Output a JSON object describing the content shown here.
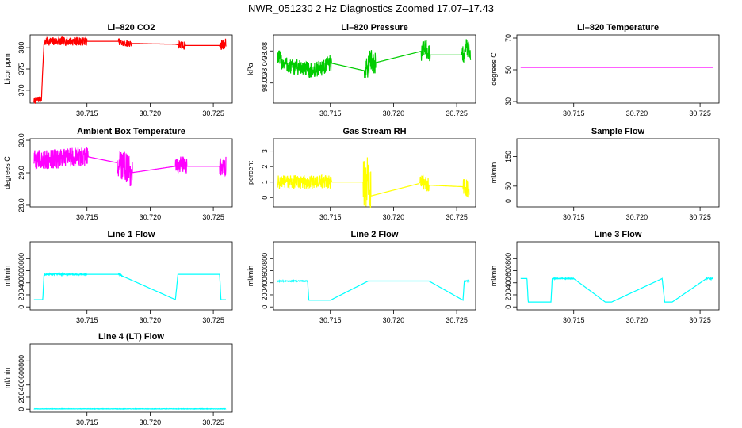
{
  "figure_title": "NWR_051230  2 Hz Diagnostics Zoomed 17.07–17.43",
  "chart_data": [
    {
      "type": "line",
      "title": "Li–820 CO2",
      "ylabel": "Licor ppm",
      "color": "#ff0000",
      "xlim": [
        30.7105,
        30.7265
      ],
      "ylim": [
        367,
        383
      ],
      "xticks": [
        "30.715",
        "30.720",
        "30.725"
      ],
      "yticks": [
        "370",
        "375",
        "380"
      ],
      "series": [
        {
          "name": "CO2",
          "x": [
            30.7108,
            30.7114,
            30.7115,
            30.7116,
            30.7118,
            30.715,
            30.7175,
            30.7178,
            30.7185,
            30.722,
            30.7225,
            30.725,
            30.7255,
            30.726
          ],
          "y": [
            367.5,
            368,
            375,
            381,
            381.5,
            381.5,
            381.5,
            381,
            381,
            380.8,
            380.5,
            380.5,
            380.5,
            381
          ]
        }
      ],
      "noise": [
        {
          "x0": 30.7108,
          "x1": 30.7114,
          "amp": 0.7
        },
        {
          "x0": 30.7116,
          "x1": 30.715,
          "amp": 1.0
        },
        {
          "x0": 30.7175,
          "x1": 30.7185,
          "amp": 0.8
        },
        {
          "x0": 30.7222,
          "x1": 30.7228,
          "amp": 1.0
        },
        {
          "x0": 30.7255,
          "x1": 30.726,
          "amp": 1.2
        }
      ]
    },
    {
      "type": "line",
      "title": "Li–820 Pressure",
      "ylabel": "kPa",
      "color": "#00cc00",
      "xlim": [
        30.7105,
        30.7265
      ],
      "ylim": [
        97.95,
        98.12
      ],
      "xticks": [
        "30.715",
        "30.720",
        "30.725"
      ],
      "yticks": [
        "98.00",
        "98.04",
        "98.08"
      ],
      "series": [
        {
          "name": "Pressure",
          "x": [
            30.7108,
            30.711,
            30.7112,
            30.7115,
            30.7117,
            30.7125,
            30.7135,
            30.7145,
            30.715,
            30.7178,
            30.7182,
            30.7185,
            30.7223,
            30.7225,
            30.7228,
            30.7255,
            30.7258,
            30.7261
          ],
          "y": [
            98.07,
            98.06,
            98.05,
            98.05,
            98.04,
            98.04,
            98.03,
            98.04,
            98.05,
            98.03,
            98.06,
            98.05,
            98.08,
            98.09,
            98.07,
            98.07,
            98.09,
            98.08
          ]
        }
      ],
      "noise": [
        {
          "x0": 30.7108,
          "x1": 30.7151,
          "amp": 0.02
        },
        {
          "x0": 30.7177,
          "x1": 30.7186,
          "amp": 0.028
        },
        {
          "x0": 30.7222,
          "x1": 30.7229,
          "amp": 0.025
        },
        {
          "x0": 30.7254,
          "x1": 30.7261,
          "amp": 0.025
        }
      ]
    },
    {
      "type": "line",
      "title": "Li–820 Temperature",
      "ylabel": "degrees C",
      "color": "#ff00ff",
      "xlim": [
        30.7105,
        30.7265
      ],
      "ylim": [
        29,
        72
      ],
      "xticks": [
        "30.715",
        "30.720",
        "30.725"
      ],
      "yticks": [
        "30",
        "50",
        "70"
      ],
      "series": [
        {
          "name": "Temperature",
          "x": [
            30.7108,
            30.726
          ],
          "y": [
            51.5,
            51.5
          ]
        }
      ],
      "noise": []
    },
    {
      "type": "line",
      "title": "Ambient Box Temperature",
      "ylabel": "degrees C",
      "color": "#ff00ff",
      "xlim": [
        30.7105,
        30.7265
      ],
      "ylim": [
        27.95,
        30.05
      ],
      "xticks": [],
      "yticks": [
        "28.0",
        "29.0",
        "30.0"
      ],
      "series": [
        {
          "name": "Box Temperature",
          "x": [
            30.7108,
            30.7115,
            30.715,
            30.7175,
            30.718,
            30.7185,
            30.722,
            30.7225,
            30.7228,
            30.7255,
            30.726
          ],
          "y": [
            29.4,
            29.4,
            29.5,
            29.3,
            29.2,
            29.0,
            29.2,
            29.3,
            29.2,
            29.2,
            29.2
          ]
        }
      ],
      "noise": [
        {
          "x0": 30.7108,
          "x1": 30.7151,
          "amp": 0.3
        },
        {
          "x0": 30.7174,
          "x1": 30.7186,
          "amp": 0.45
        },
        {
          "x0": 30.722,
          "x1": 30.7229,
          "amp": 0.25
        },
        {
          "x0": 30.7255,
          "x1": 30.726,
          "amp": 0.3
        }
      ]
    },
    {
      "type": "line",
      "title": "Gas Stream RH",
      "ylabel": "percent",
      "color": "#ffff00",
      "xlim": [
        30.7105,
        30.7265
      ],
      "ylim": [
        -0.6,
        3.8
      ],
      "xticks": [],
      "yticks": [
        "0",
        "1",
        "2",
        "3"
      ],
      "series": [
        {
          "name": "RH",
          "x": [
            30.7108,
            30.715,
            30.7175,
            30.718,
            30.7182,
            30.722,
            30.7222,
            30.7228,
            30.7255,
            30.726
          ],
          "y": [
            1.0,
            1.0,
            1.0,
            1.0,
            0.1,
            0.9,
            1.1,
            0.8,
            0.7,
            0.5
          ]
        }
      ],
      "noise": [
        {
          "x0": 30.7108,
          "x1": 30.7151,
          "amp": 0.45
        },
        {
          "x0": 30.7176,
          "x1": 30.7182,
          "amp": 1.6
        },
        {
          "x0": 30.7221,
          "x1": 30.7228,
          "amp": 0.5
        },
        {
          "x0": 30.7255,
          "x1": 30.726,
          "amp": 0.6
        }
      ]
    },
    {
      "type": "line",
      "title": "Sample Flow",
      "ylabel": "ml/min",
      "color": "#00ffff",
      "xlim": [
        30.7105,
        30.7265
      ],
      "ylim": [
        -20,
        210
      ],
      "xticks": [],
      "yticks": [
        "0",
        "50",
        "150"
      ],
      "series": [],
      "noise": []
    },
    {
      "type": "line",
      "title": "Line 1 Flow",
      "ylabel": "ml/min",
      "color": "#00ffff",
      "xlim": [
        30.7105,
        30.7265
      ],
      "ylim": [
        -50,
        1080
      ],
      "xticks": [],
      "yticks": [
        "0",
        "200",
        "400",
        "600",
        "800"
      ],
      "series": [
        {
          "name": "Line 1",
          "x": [
            30.7108,
            30.7115,
            30.7116,
            30.7175,
            30.722,
            30.7222,
            30.7255,
            30.7256,
            30.726
          ],
          "y": [
            120,
            120,
            540,
            540,
            120,
            540,
            540,
            120,
            120
          ]
        }
      ],
      "noise": [
        {
          "x0": 30.7116,
          "x1": 30.715,
          "amp": 12
        },
        {
          "x0": 30.7175,
          "x1": 30.7178,
          "amp": 10
        }
      ]
    },
    {
      "type": "line",
      "title": "Line 2 Flow",
      "ylabel": "ml/min",
      "color": "#00ffff",
      "xlim": [
        30.7105,
        30.7265
      ],
      "ylim": [
        -50,
        1080
      ],
      "xticks": [
        "30.715",
        "30.720",
        "30.725"
      ],
      "yticks": [
        "0",
        "200",
        "400",
        "600",
        "800"
      ],
      "series": [
        {
          "name": "Line 2",
          "x": [
            30.7108,
            30.7132,
            30.7133,
            30.715,
            30.718,
            30.7228,
            30.7255,
            30.7256,
            30.726
          ],
          "y": [
            430,
            430,
            110,
            110,
            430,
            430,
            110,
            430,
            430
          ]
        }
      ],
      "noise": [
        {
          "x0": 30.7108,
          "x1": 30.7132,
          "amp": 8
        },
        {
          "x0": 30.7256,
          "x1": 30.726,
          "amp": 10
        }
      ]
    },
    {
      "type": "line",
      "title": "Line 3 Flow",
      "ylabel": "ml/min",
      "color": "#00ffff",
      "xlim": [
        30.7105,
        30.7265
      ],
      "ylim": [
        -50,
        1080
      ],
      "xticks": [
        "30.715",
        "30.720",
        "30.725"
      ],
      "yticks": [
        "0",
        "200",
        "400",
        "600",
        "800"
      ],
      "series": [
        {
          "name": "Line 3",
          "x": [
            30.7108,
            30.7113,
            30.7114,
            30.7132,
            30.7133,
            30.715,
            30.7175,
            30.718,
            30.722,
            30.7222,
            30.7228,
            30.7255,
            30.726
          ],
          "y": [
            470,
            470,
            80,
            80,
            470,
            470,
            80,
            80,
            470,
            80,
            80,
            470,
            470
          ]
        }
      ],
      "noise": [
        {
          "x0": 30.7133,
          "x1": 30.715,
          "amp": 8
        },
        {
          "x0": 30.7255,
          "x1": 30.726,
          "amp": 10
        }
      ]
    },
    {
      "type": "line",
      "title": "Line 4 (LT) Flow",
      "ylabel": "ml/min",
      "color": "#00ffff",
      "xlim": [
        30.7105,
        30.7265
      ],
      "ylim": [
        -50,
        1080
      ],
      "xticks": [
        "30.715",
        "30.720",
        "30.725"
      ],
      "yticks": [
        "0",
        "200",
        "400",
        "600",
        "800"
      ],
      "series": [
        {
          "name": "Line 4",
          "x": [
            30.7108,
            30.726
          ],
          "y": [
            5,
            5
          ]
        }
      ],
      "noise": [
        {
          "x0": 30.7108,
          "x1": 30.726,
          "amp": 3
        }
      ]
    }
  ]
}
